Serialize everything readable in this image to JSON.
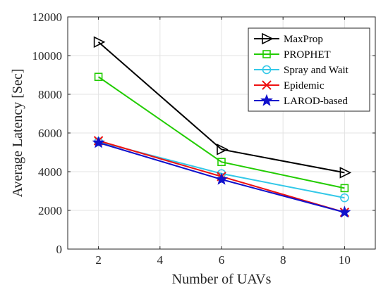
{
  "chart_data": {
    "type": "line",
    "xlabel": "Number of UAVs",
    "ylabel": "Average Latency [Sec]",
    "x": [
      2,
      6,
      10
    ],
    "xlim": [
      1,
      11
    ],
    "ylim": [
      0,
      12000
    ],
    "xticks": [
      2,
      4,
      6,
      8,
      10
    ],
    "yticks": [
      0,
      2000,
      4000,
      6000,
      8000,
      10000,
      12000
    ],
    "grid": true,
    "legend_position": "top-right",
    "series": [
      {
        "name": "MaxProp",
        "values": [
          10700,
          5150,
          3950
        ],
        "color": "#000000",
        "marker": "triangle-right"
      },
      {
        "name": "PROPHET",
        "values": [
          8900,
          4500,
          3150
        ],
        "color": "#22cc00",
        "marker": "square"
      },
      {
        "name": "Spray and Wait",
        "values": [
          5550,
          3900,
          2650
        ],
        "color": "#33c8e8",
        "marker": "circle"
      },
      {
        "name": "Epidemic",
        "values": [
          5600,
          3750,
          1900
        ],
        "color": "#ee1111",
        "marker": "x"
      },
      {
        "name": "LAROD-based",
        "values": [
          5500,
          3600,
          1900
        ],
        "color": "#1111cc",
        "marker": "star"
      }
    ]
  }
}
